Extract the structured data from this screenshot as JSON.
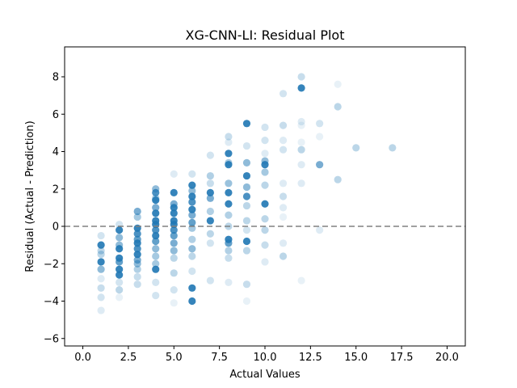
{
  "chart_data": {
    "type": "scatter",
    "title": "XG-CNN-LI: Residual Plot",
    "xlabel": "Actual Values",
    "ylabel": "Residual (Actual - Prediction)",
    "xlim": [
      -1.0,
      21.0
    ],
    "ylim": [
      -6.4,
      9.6
    ],
    "xticks": [
      0.0,
      2.5,
      5.0,
      7.5,
      10.0,
      12.5,
      15.0,
      17.5,
      20.0
    ],
    "xtick_labels": [
      "0.0",
      "2.5",
      "5.0",
      "7.5",
      "10.0",
      "12.5",
      "15.0",
      "17.5",
      "20.0"
    ],
    "yticks": [
      -6,
      -4,
      -2,
      0,
      2,
      4,
      6,
      8
    ],
    "ytick_labels": [
      "−6",
      "−4",
      "−2",
      "0",
      "2",
      "4",
      "6",
      "8"
    ],
    "reference_line": {
      "y": 0,
      "style": "dashed",
      "color": "#808080"
    },
    "point_color": "#1f77b4",
    "grid": false,
    "series": [
      {
        "points": [
          [
            1,
            -1.0,
            0.9
          ],
          [
            1,
            -1.9,
            0.9
          ],
          [
            1,
            -2.3,
            0.5
          ],
          [
            1,
            -1.5,
            0.3
          ],
          [
            1,
            -0.5,
            0.2
          ],
          [
            1,
            -3.3,
            0.25
          ],
          [
            1,
            -3.8,
            0.2
          ],
          [
            1,
            -4.5,
            0.15
          ],
          [
            1,
            -2.8,
            0.15
          ],
          [
            1,
            -1.3,
            0.3
          ],
          [
            2,
            -0.2,
            0.9
          ],
          [
            2,
            -1.2,
            0.9
          ],
          [
            2,
            -1.7,
            0.9
          ],
          [
            2,
            -1.9,
            0.7
          ],
          [
            2,
            -2.3,
            0.9
          ],
          [
            2,
            -2.6,
            0.9
          ],
          [
            2,
            -0.6,
            0.5
          ],
          [
            2,
            -1.0,
            0.5
          ],
          [
            2,
            -3.4,
            0.3
          ],
          [
            2,
            -3.0,
            0.2
          ],
          [
            2,
            0.1,
            0.2
          ],
          [
            2,
            -3.8,
            0.1
          ],
          [
            3,
            0.8,
            0.6
          ],
          [
            3,
            0.5,
            0.4
          ],
          [
            3,
            -0.1,
            0.9
          ],
          [
            3,
            -0.4,
            0.8
          ],
          [
            3,
            -0.7,
            0.7
          ],
          [
            3,
            -0.9,
            0.9
          ],
          [
            3,
            -1.2,
            0.8
          ],
          [
            3,
            -1.5,
            0.9
          ],
          [
            3,
            -1.8,
            0.6
          ],
          [
            3,
            -2.0,
            0.5
          ],
          [
            3,
            -2.3,
            0.35
          ],
          [
            3,
            -2.7,
            0.25
          ],
          [
            3,
            -3.1,
            0.25
          ],
          [
            4,
            2.0,
            0.5
          ],
          [
            4,
            1.8,
            0.8
          ],
          [
            4,
            1.5,
            0.4
          ],
          [
            4,
            1.4,
            0.9
          ],
          [
            4,
            1.0,
            0.6
          ],
          [
            4,
            0.7,
            0.9
          ],
          [
            4,
            0.3,
            0.9
          ],
          [
            4,
            0.1,
            0.9
          ],
          [
            4,
            -0.2,
            0.8
          ],
          [
            4,
            -0.5,
            0.9
          ],
          [
            4,
            -0.8,
            0.7
          ],
          [
            4,
            -1.2,
            0.5
          ],
          [
            4,
            -1.6,
            0.4
          ],
          [
            4,
            -2.0,
            0.4
          ],
          [
            4,
            -2.3,
            0.9
          ],
          [
            4,
            -3.0,
            0.2
          ],
          [
            4,
            -3.7,
            0.2
          ],
          [
            5,
            1.8,
            0.9
          ],
          [
            5,
            1.2,
            0.6
          ],
          [
            5,
            1.0,
            0.9
          ],
          [
            5,
            0.7,
            0.9
          ],
          [
            5,
            0.3,
            0.9
          ],
          [
            5,
            0.1,
            0.9
          ],
          [
            5,
            -0.2,
            0.8
          ],
          [
            5,
            -0.5,
            0.7
          ],
          [
            5,
            -0.9,
            0.6
          ],
          [
            5,
            -1.3,
            0.5
          ],
          [
            5,
            -1.7,
            0.3
          ],
          [
            5,
            -2.5,
            0.3
          ],
          [
            5,
            -3.4,
            0.2
          ],
          [
            5,
            -4.1,
            0.1
          ],
          [
            5,
            2.8,
            0.15
          ],
          [
            6,
            2.2,
            0.9
          ],
          [
            6,
            1.9,
            0.5
          ],
          [
            6,
            1.6,
            0.9
          ],
          [
            6,
            1.3,
            0.8
          ],
          [
            6,
            0.9,
            0.9
          ],
          [
            6,
            0.6,
            0.6
          ],
          [
            6,
            0.2,
            0.7
          ],
          [
            6,
            -0.1,
            0.4
          ],
          [
            6,
            -0.7,
            0.35
          ],
          [
            6,
            -1.2,
            0.5
          ],
          [
            6,
            -1.6,
            0.3
          ],
          [
            6,
            -2.4,
            0.2
          ],
          [
            6,
            -3.3,
            0.9
          ],
          [
            6,
            -4.0,
            0.9
          ],
          [
            6,
            2.8,
            0.2
          ],
          [
            7,
            3.8,
            0.2
          ],
          [
            7,
            2.7,
            0.35
          ],
          [
            7,
            2.3,
            0.25
          ],
          [
            7,
            1.8,
            0.9
          ],
          [
            7,
            1.5,
            0.6
          ],
          [
            7,
            0.8,
            0.35
          ],
          [
            7,
            0.3,
            0.9
          ],
          [
            7,
            -0.4,
            0.3
          ],
          [
            7,
            -0.9,
            0.2
          ],
          [
            7,
            -2.9,
            0.2
          ],
          [
            8,
            4.8,
            0.25
          ],
          [
            8,
            4.5,
            0.15
          ],
          [
            8,
            3.9,
            0.9
          ],
          [
            8,
            3.4,
            0.4
          ],
          [
            8,
            3.3,
            0.9
          ],
          [
            8,
            2.3,
            0.45
          ],
          [
            8,
            1.8,
            0.9
          ],
          [
            8,
            1.2,
            0.9
          ],
          [
            8,
            0.6,
            0.35
          ],
          [
            8,
            0.0,
            0.3
          ],
          [
            8,
            -0.7,
            0.9
          ],
          [
            8,
            -0.9,
            0.7
          ],
          [
            8,
            -1.3,
            0.35
          ],
          [
            8,
            -1.7,
            0.25
          ],
          [
            8,
            -3.0,
            0.15
          ],
          [
            9,
            5.5,
            0.9
          ],
          [
            9,
            4.3,
            0.2
          ],
          [
            9,
            3.4,
            0.5
          ],
          [
            9,
            2.7,
            0.9
          ],
          [
            9,
            2.1,
            0.5
          ],
          [
            9,
            1.6,
            0.8
          ],
          [
            9,
            1.1,
            0.3
          ],
          [
            9,
            0.3,
            0.3
          ],
          [
            9,
            -0.2,
            0.2
          ],
          [
            9,
            -0.8,
            0.9
          ],
          [
            9,
            -1.3,
            0.3
          ],
          [
            9,
            -3.1,
            0.25
          ],
          [
            9,
            -4.0,
            0.1
          ],
          [
            10,
            5.3,
            0.2
          ],
          [
            10,
            4.6,
            0.2
          ],
          [
            10,
            3.9,
            0.15
          ],
          [
            10,
            3.5,
            0.5
          ],
          [
            10,
            3.3,
            0.9
          ],
          [
            10,
            2.9,
            0.4
          ],
          [
            10,
            2.2,
            0.3
          ],
          [
            10,
            1.2,
            0.9
          ],
          [
            10,
            0.4,
            0.3
          ],
          [
            10,
            -0.2,
            0.3
          ],
          [
            10,
            -1.0,
            0.25
          ],
          [
            10,
            -1.9,
            0.15
          ],
          [
            11,
            7.1,
            0.2
          ],
          [
            11,
            5.4,
            0.25
          ],
          [
            11,
            4.6,
            0.15
          ],
          [
            11,
            4.1,
            0.2
          ],
          [
            11,
            2.3,
            0.15
          ],
          [
            11,
            1.6,
            0.25
          ],
          [
            11,
            1.0,
            0.15
          ],
          [
            11,
            0.5,
            0.1
          ],
          [
            11,
            -0.9,
            0.15
          ],
          [
            11,
            -1.6,
            0.3
          ],
          [
            12,
            8.0,
            0.25
          ],
          [
            12,
            7.4,
            0.9
          ],
          [
            12,
            5.6,
            0.15
          ],
          [
            12,
            5.4,
            0.1
          ],
          [
            12,
            4.5,
            0.1
          ],
          [
            12,
            4.1,
            0.3
          ],
          [
            12,
            3.3,
            0.15
          ],
          [
            12,
            2.3,
            0.15
          ],
          [
            12,
            -2.9,
            0.1
          ],
          [
            13,
            5.5,
            0.2
          ],
          [
            13,
            4.8,
            0.1
          ],
          [
            13,
            3.3,
            0.6
          ],
          [
            13,
            -0.2,
            0.15
          ],
          [
            14,
            7.6,
            0.1
          ],
          [
            14,
            6.4,
            0.3
          ],
          [
            14,
            2.5,
            0.3
          ],
          [
            15,
            4.2,
            0.3
          ],
          [
            17,
            4.2,
            0.3
          ]
        ]
      }
    ]
  }
}
